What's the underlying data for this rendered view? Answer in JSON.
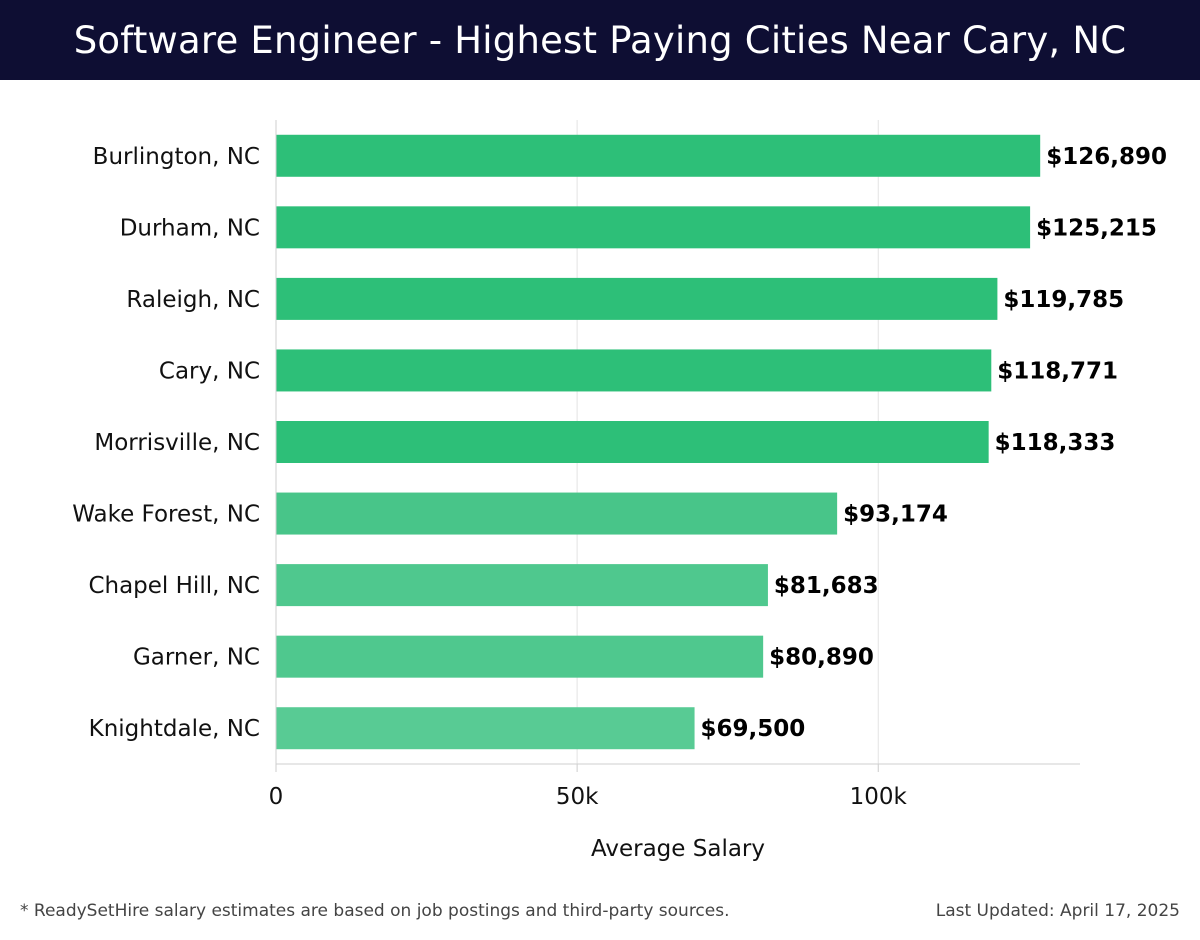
{
  "header": {
    "title": "Software Engineer - Highest Paying Cities Near Cary, NC"
  },
  "chart_data": {
    "type": "bar",
    "orientation": "horizontal",
    "title": "Software Engineer - Highest Paying Cities Near Cary, NC",
    "xlabel": "Average Salary",
    "ylabel": "",
    "xlim": [
      0,
      133500
    ],
    "grid": true,
    "categories": [
      "Burlington, NC",
      "Durham, NC",
      "Raleigh, NC",
      "Cary, NC",
      "Morrisville, NC",
      "Wake Forest, NC",
      "Chapel Hill, NC",
      "Garner, NC",
      "Knightdale, NC"
    ],
    "values": [
      126890,
      125215,
      119785,
      118771,
      118333,
      93174,
      81683,
      80890,
      69500
    ],
    "value_labels": [
      "$126,890",
      "$125,215",
      "$119,785",
      "$118,771",
      "$118,333",
      "$93,174",
      "$81,683",
      "$80,890",
      "$69,500"
    ],
    "bar_colors": [
      "#2dbf78",
      "#2dbf78",
      "#2dbf78",
      "#2dbf78",
      "#2dbf78",
      "#48c589",
      "#4fc88e",
      "#4fc88e",
      "#58cb94"
    ],
    "xticks": [
      {
        "value": 0,
        "label": "0"
      },
      {
        "value": 50000,
        "label": "50k"
      },
      {
        "value": 100000,
        "label": "100k"
      }
    ]
  },
  "footer": {
    "note": "* ReadySetHire salary estimates are based on job postings and third-party sources.",
    "updated": "Last Updated: April 17, 2025"
  }
}
